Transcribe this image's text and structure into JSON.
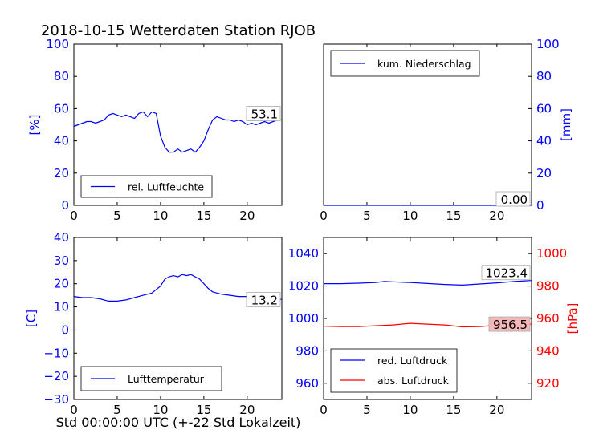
{
  "title": "2018-10-15 Wetterdaten Station RJOB",
  "footer_xlabel": "Std 00:00:00 UTC (+-22 Std Lokalzeit)",
  "colors": {
    "blue": "#0000ff",
    "red": "#ff0000",
    "black": "#000000",
    "last_box_red": "#f4b8b8"
  },
  "chart_data": [
    {
      "id": "humidity",
      "type": "line",
      "ylabel": "[%]",
      "xlim": [
        0,
        24
      ],
      "ylim": [
        0,
        100
      ],
      "xticks": [
        "0",
        "5",
        "10",
        "15",
        "20"
      ],
      "yticks": [
        "0",
        "20",
        "40",
        "60",
        "80",
        "100"
      ],
      "legend_position": "lower-left",
      "last_value": "53.1",
      "series": [
        {
          "name": "rel. Luftfeuchte",
          "color": "#0000ff",
          "x": [
            0,
            0.5,
            1,
            1.5,
            2,
            2.5,
            3,
            3.5,
            4,
            4.5,
            5,
            5.5,
            6,
            6.5,
            7,
            7.5,
            8,
            8.5,
            9,
            9.5,
            10,
            10.5,
            11,
            11.5,
            12,
            12.5,
            13,
            13.5,
            14,
            14.5,
            15,
            15.5,
            16,
            16.5,
            17,
            17.5,
            18,
            18.5,
            19,
            19.5,
            20,
            20.5,
            21,
            21.5,
            22,
            22.5,
            23,
            23.5,
            24
          ],
          "y": [
            49,
            50,
            51,
            52,
            52,
            51,
            52,
            53,
            56,
            57,
            56,
            55,
            56,
            55,
            54,
            57,
            58,
            55,
            58,
            57,
            43,
            36,
            33,
            33,
            35,
            33,
            34,
            35,
            33,
            36,
            40,
            47,
            53,
            55,
            54,
            53,
            53,
            52,
            53,
            52,
            50,
            51,
            50,
            51,
            52,
            51,
            52,
            53,
            53
          ]
        }
      ]
    },
    {
      "id": "precip",
      "type": "line",
      "ylabel": "[mm]",
      "xlim": [
        0,
        24
      ],
      "ylim": [
        0,
        100
      ],
      "xticks": [
        "0",
        "5",
        "10",
        "15",
        "20"
      ],
      "yticks": [
        "0",
        "20",
        "40",
        "60",
        "80",
        "100"
      ],
      "legend_position": "upper-left",
      "last_value": "0.00",
      "series": [
        {
          "name": "kum. Niederschlag",
          "color": "#0000ff",
          "x": [
            0,
            24
          ],
          "y": [
            0,
            0
          ]
        }
      ]
    },
    {
      "id": "temperature",
      "type": "line",
      "ylabel": "[C]",
      "xlim": [
        0,
        24
      ],
      "ylim": [
        -30,
        40
      ],
      "xticks": [
        "0",
        "5",
        "10",
        "15",
        "20"
      ],
      "yticks": [
        "−30",
        "−20",
        "−10",
        "0",
        "10",
        "20",
        "30",
        "40"
      ],
      "legend_position": "lower-left",
      "last_value": "13.2",
      "series": [
        {
          "name": "Lufttemperatur",
          "color": "#0000ff",
          "x": [
            0,
            1,
            2,
            3,
            4,
            5,
            6,
            7,
            8,
            9,
            10,
            10.5,
            11,
            11.5,
            12,
            12.5,
            13,
            13.5,
            14,
            14.5,
            15,
            15.5,
            16,
            17,
            18,
            19,
            20,
            21,
            22,
            23,
            24
          ],
          "y": [
            14.5,
            14,
            14,
            13.5,
            12.5,
            12.5,
            13,
            14,
            15,
            16,
            19,
            22,
            23,
            23.5,
            23,
            24,
            23.5,
            24,
            23,
            22,
            20,
            18,
            16.5,
            15.5,
            15,
            14.5,
            14.5,
            14,
            14,
            13.5,
            13.2
          ]
        }
      ]
    },
    {
      "id": "pressure",
      "type": "line",
      "xlim": [
        0,
        24
      ],
      "ylim_left": [
        950,
        1050
      ],
      "ylim_right": [
        910,
        1010
      ],
      "ylabel_right": "[hPa]",
      "xticks": [
        "0",
        "5",
        "10",
        "15",
        "20"
      ],
      "yticks_left": [
        "960",
        "980",
        "1000",
        "1020",
        "1040"
      ],
      "yticks_right": [
        "920",
        "940",
        "960",
        "980",
        "1000"
      ],
      "legend_position": "lower-left",
      "last_values": [
        "1023.4",
        "956.5"
      ],
      "series": [
        {
          "name": "red. Luftdruck",
          "color": "#0000ff",
          "axis": "left",
          "x": [
            0,
            2,
            4,
            6,
            7,
            8,
            10,
            12,
            14,
            16,
            18,
            20,
            22,
            24
          ],
          "y": [
            1021.5,
            1021.5,
            1021.8,
            1022.2,
            1022.8,
            1022.6,
            1022.2,
            1021.6,
            1021,
            1020.6,
            1021.3,
            1022,
            1022.8,
            1023.4
          ]
        },
        {
          "name": "abs. Luftdruck",
          "color": "#ff0000",
          "axis": "right",
          "x": [
            0,
            2,
            4,
            6,
            8,
            10,
            12,
            14,
            16,
            18,
            20,
            22,
            24
          ],
          "y": [
            955.2,
            955,
            955,
            955.5,
            956,
            957,
            956.5,
            956,
            954.8,
            955,
            955.8,
            956.2,
            956.5
          ]
        }
      ]
    }
  ]
}
